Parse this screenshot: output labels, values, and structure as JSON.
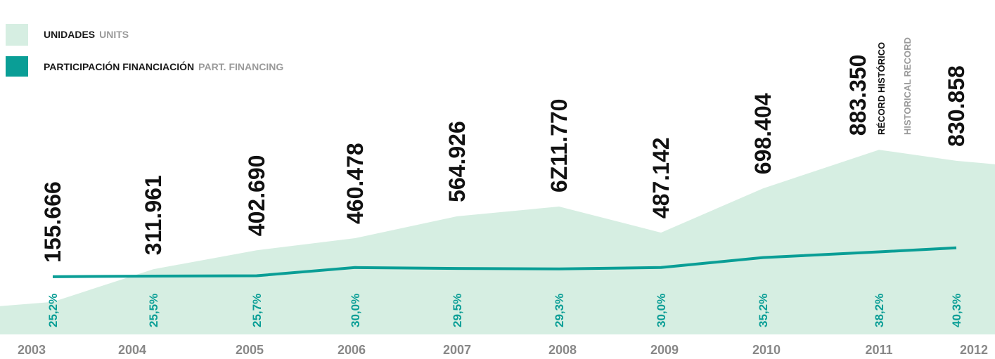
{
  "chart_data": {
    "type": "area_line",
    "categories": [
      "2003",
      "2004",
      "2005",
      "2006",
      "2007",
      "2008",
      "2009",
      "2010",
      "2011",
      "2012"
    ],
    "series": [
      {
        "name": "UNIDADES",
        "name_en": "UNITS",
        "type": "area",
        "color": "#d6eee2",
        "values": [
          155666,
          311961,
          402690,
          460478,
          564926,
          611770,
          487142,
          698404,
          883350,
          830858
        ],
        "value_labels": [
          "155.666",
          "311.961",
          "402.690",
          "460.478",
          "564.926",
          "6Z11.770",
          "487.142",
          "698.404",
          "883.350",
          "830.858"
        ]
      },
      {
        "name": "PARTICIPACIÓN FINANCIACIÓN",
        "name_en": "PART. FINANCING",
        "type": "line",
        "color": "#0a9e96",
        "axis": "y2",
        "values": [
          25.2,
          25.5,
          25.7,
          30.0,
          29.5,
          29.3,
          30.0,
          35.2,
          38.2,
          40.3
        ],
        "value_labels": [
          "25,2%",
          "25,5%",
          "25,7%",
          "30,0%",
          "29,5%",
          "29,3%",
          "30,0%",
          "35,2%",
          "38,2%",
          "40,3%"
        ]
      }
    ],
    "annotations": [
      "RÉCORD HISTÓRICO",
      "HISTORICAL RECORD"
    ],
    "ylim": [
      0,
      1600000
    ],
    "y2lim": [
      -5,
      170
    ]
  }
}
